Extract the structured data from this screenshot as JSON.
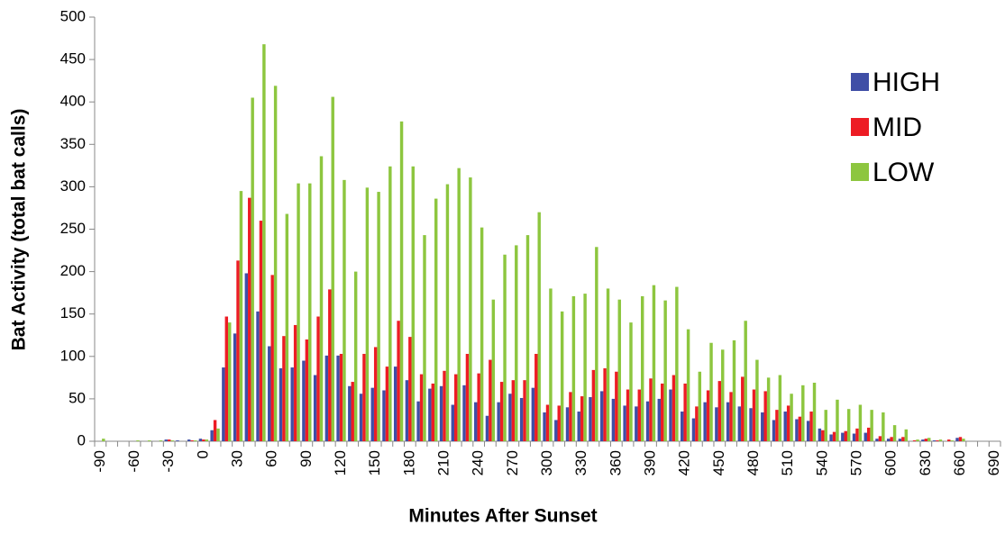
{
  "chart_data": {
    "type": "bar",
    "x_label": "Minutes After Sunset",
    "y_label": "Bat Activity (total bat calls)",
    "categories": [
      "-90",
      null,
      null,
      "-60",
      null,
      null,
      "-30",
      null,
      null,
      "0",
      null,
      null,
      "30",
      null,
      null,
      "60",
      null,
      null,
      "90",
      null,
      null,
      "120",
      null,
      null,
      "150",
      null,
      null,
      "180",
      null,
      null,
      "210",
      null,
      null,
      "240",
      null,
      null,
      "270",
      null,
      null,
      "300",
      null,
      null,
      "330",
      null,
      null,
      "360",
      null,
      null,
      "390",
      null,
      null,
      "420",
      null,
      null,
      "450",
      null,
      null,
      "480",
      null,
      null,
      "510",
      null,
      null,
      "540",
      null,
      null,
      "570",
      null,
      null,
      "600",
      null,
      null,
      "630",
      null,
      null,
      "660",
      null,
      null,
      "690"
    ],
    "series": [
      {
        "name": "HIGH",
        "color": "#3f4ea6",
        "values": [
          0,
          0,
          0,
          0,
          0,
          0,
          2,
          1,
          2,
          3,
          13,
          87,
          127,
          198,
          153,
          112,
          86,
          87,
          95,
          78,
          101,
          101,
          65,
          56,
          63,
          60,
          88,
          72,
          47,
          62,
          65,
          43,
          66,
          46,
          30,
          46,
          56,
          51,
          63,
          34,
          25,
          40,
          35,
          52,
          59,
          50,
          42,
          41,
          47,
          50,
          61,
          35,
          27,
          46,
          40,
          46,
          41,
          39,
          34,
          25,
          35,
          26,
          24,
          15,
          8,
          10,
          9,
          10,
          3,
          3,
          3,
          0,
          2,
          1,
          0,
          4,
          0,
          0,
          0
        ]
      },
      {
        "name": "MID",
        "color": "#ed1c24",
        "values": [
          0,
          0,
          0,
          0,
          0,
          0,
          2,
          0,
          1,
          2,
          25,
          147,
          213,
          287,
          260,
          196,
          124,
          137,
          120,
          147,
          179,
          103,
          70,
          103,
          111,
          88,
          142,
          123,
          79,
          68,
          83,
          79,
          103,
          80,
          96,
          70,
          72,
          72,
          103,
          43,
          42,
          58,
          53,
          84,
          86,
          82,
          61,
          61,
          74,
          68,
          78,
          68,
          41,
          60,
          71,
          58,
          76,
          61,
          59,
          37,
          42,
          29,
          35,
          13,
          11,
          12,
          15,
          16,
          6,
          5,
          5,
          1,
          3,
          1,
          2,
          5,
          0,
          0,
          0
        ]
      },
      {
        "name": "LOW",
        "color": "#8dc63f",
        "values": [
          3,
          0,
          0,
          1,
          1,
          1,
          1,
          0,
          1,
          2,
          15,
          140,
          295,
          405,
          468,
          419,
          268,
          304,
          304,
          336,
          406,
          308,
          200,
          299,
          294,
          324,
          377,
          324,
          243,
          286,
          303,
          322,
          311,
          252,
          167,
          220,
          231,
          243,
          270,
          180,
          153,
          171,
          174,
          229,
          180,
          167,
          140,
          171,
          184,
          166,
          182,
          132,
          82,
          116,
          108,
          119,
          142,
          96,
          75,
          78,
          56,
          66,
          69,
          37,
          49,
          38,
          43,
          37,
          34,
          19,
          14,
          2,
          4,
          2,
          1,
          3,
          0,
          0,
          0
        ]
      }
    ],
    "ylim": [
      0,
      500
    ],
    "yticks": [
      0,
      50,
      100,
      150,
      200,
      250,
      300,
      350,
      400,
      450,
      500
    ],
    "grid": false,
    "legend": "upper right"
  }
}
